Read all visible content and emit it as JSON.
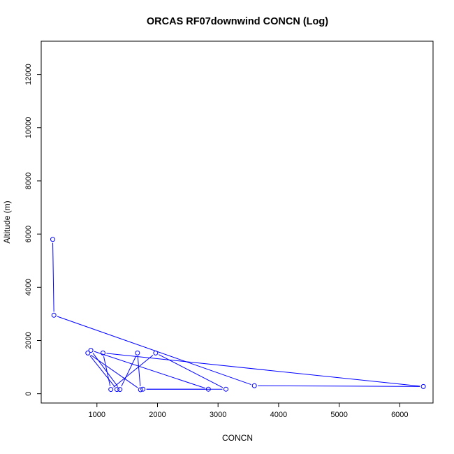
{
  "chart_data": {
    "type": "line",
    "title": "ORCAS RF07downwind CONCN (Log)",
    "xlabel": "CONCN",
    "ylabel": "Altitude (m)",
    "xlim": [
      80,
      6550
    ],
    "ylim": [
      -350,
      13250
    ],
    "xticks": [
      1000,
      2000,
      3000,
      4000,
      5000,
      6000
    ],
    "yticks": [
      0,
      2000,
      4000,
      6000,
      8000,
      10000,
      12000
    ],
    "grid": false,
    "legend": "none",
    "colors": {
      "series": "#0000ff",
      "axis": "#000000",
      "background": "#ffffff"
    },
    "series": [
      {
        "markers": "open-circle",
        "points": [
          {
            "x": 270,
            "y": 5800
          },
          {
            "x": 290,
            "y": 2950
          },
          {
            "x": 3600,
            "y": 300
          },
          {
            "x": 6390,
            "y": 270
          },
          {
            "x": 1100,
            "y": 1530
          },
          {
            "x": 1230,
            "y": 160
          },
          {
            "x": 1970,
            "y": 1530
          },
          {
            "x": 3130,
            "y": 170
          },
          {
            "x": 1760,
            "y": 170
          },
          {
            "x": 2840,
            "y": 170
          },
          {
            "x": 900,
            "y": 1630
          },
          {
            "x": 1380,
            "y": 160
          },
          {
            "x": 1670,
            "y": 1530
          },
          {
            "x": 1720,
            "y": 150
          },
          {
            "x": 850,
            "y": 1530
          },
          {
            "x": 1330,
            "y": 160
          }
        ]
      }
    ]
  }
}
